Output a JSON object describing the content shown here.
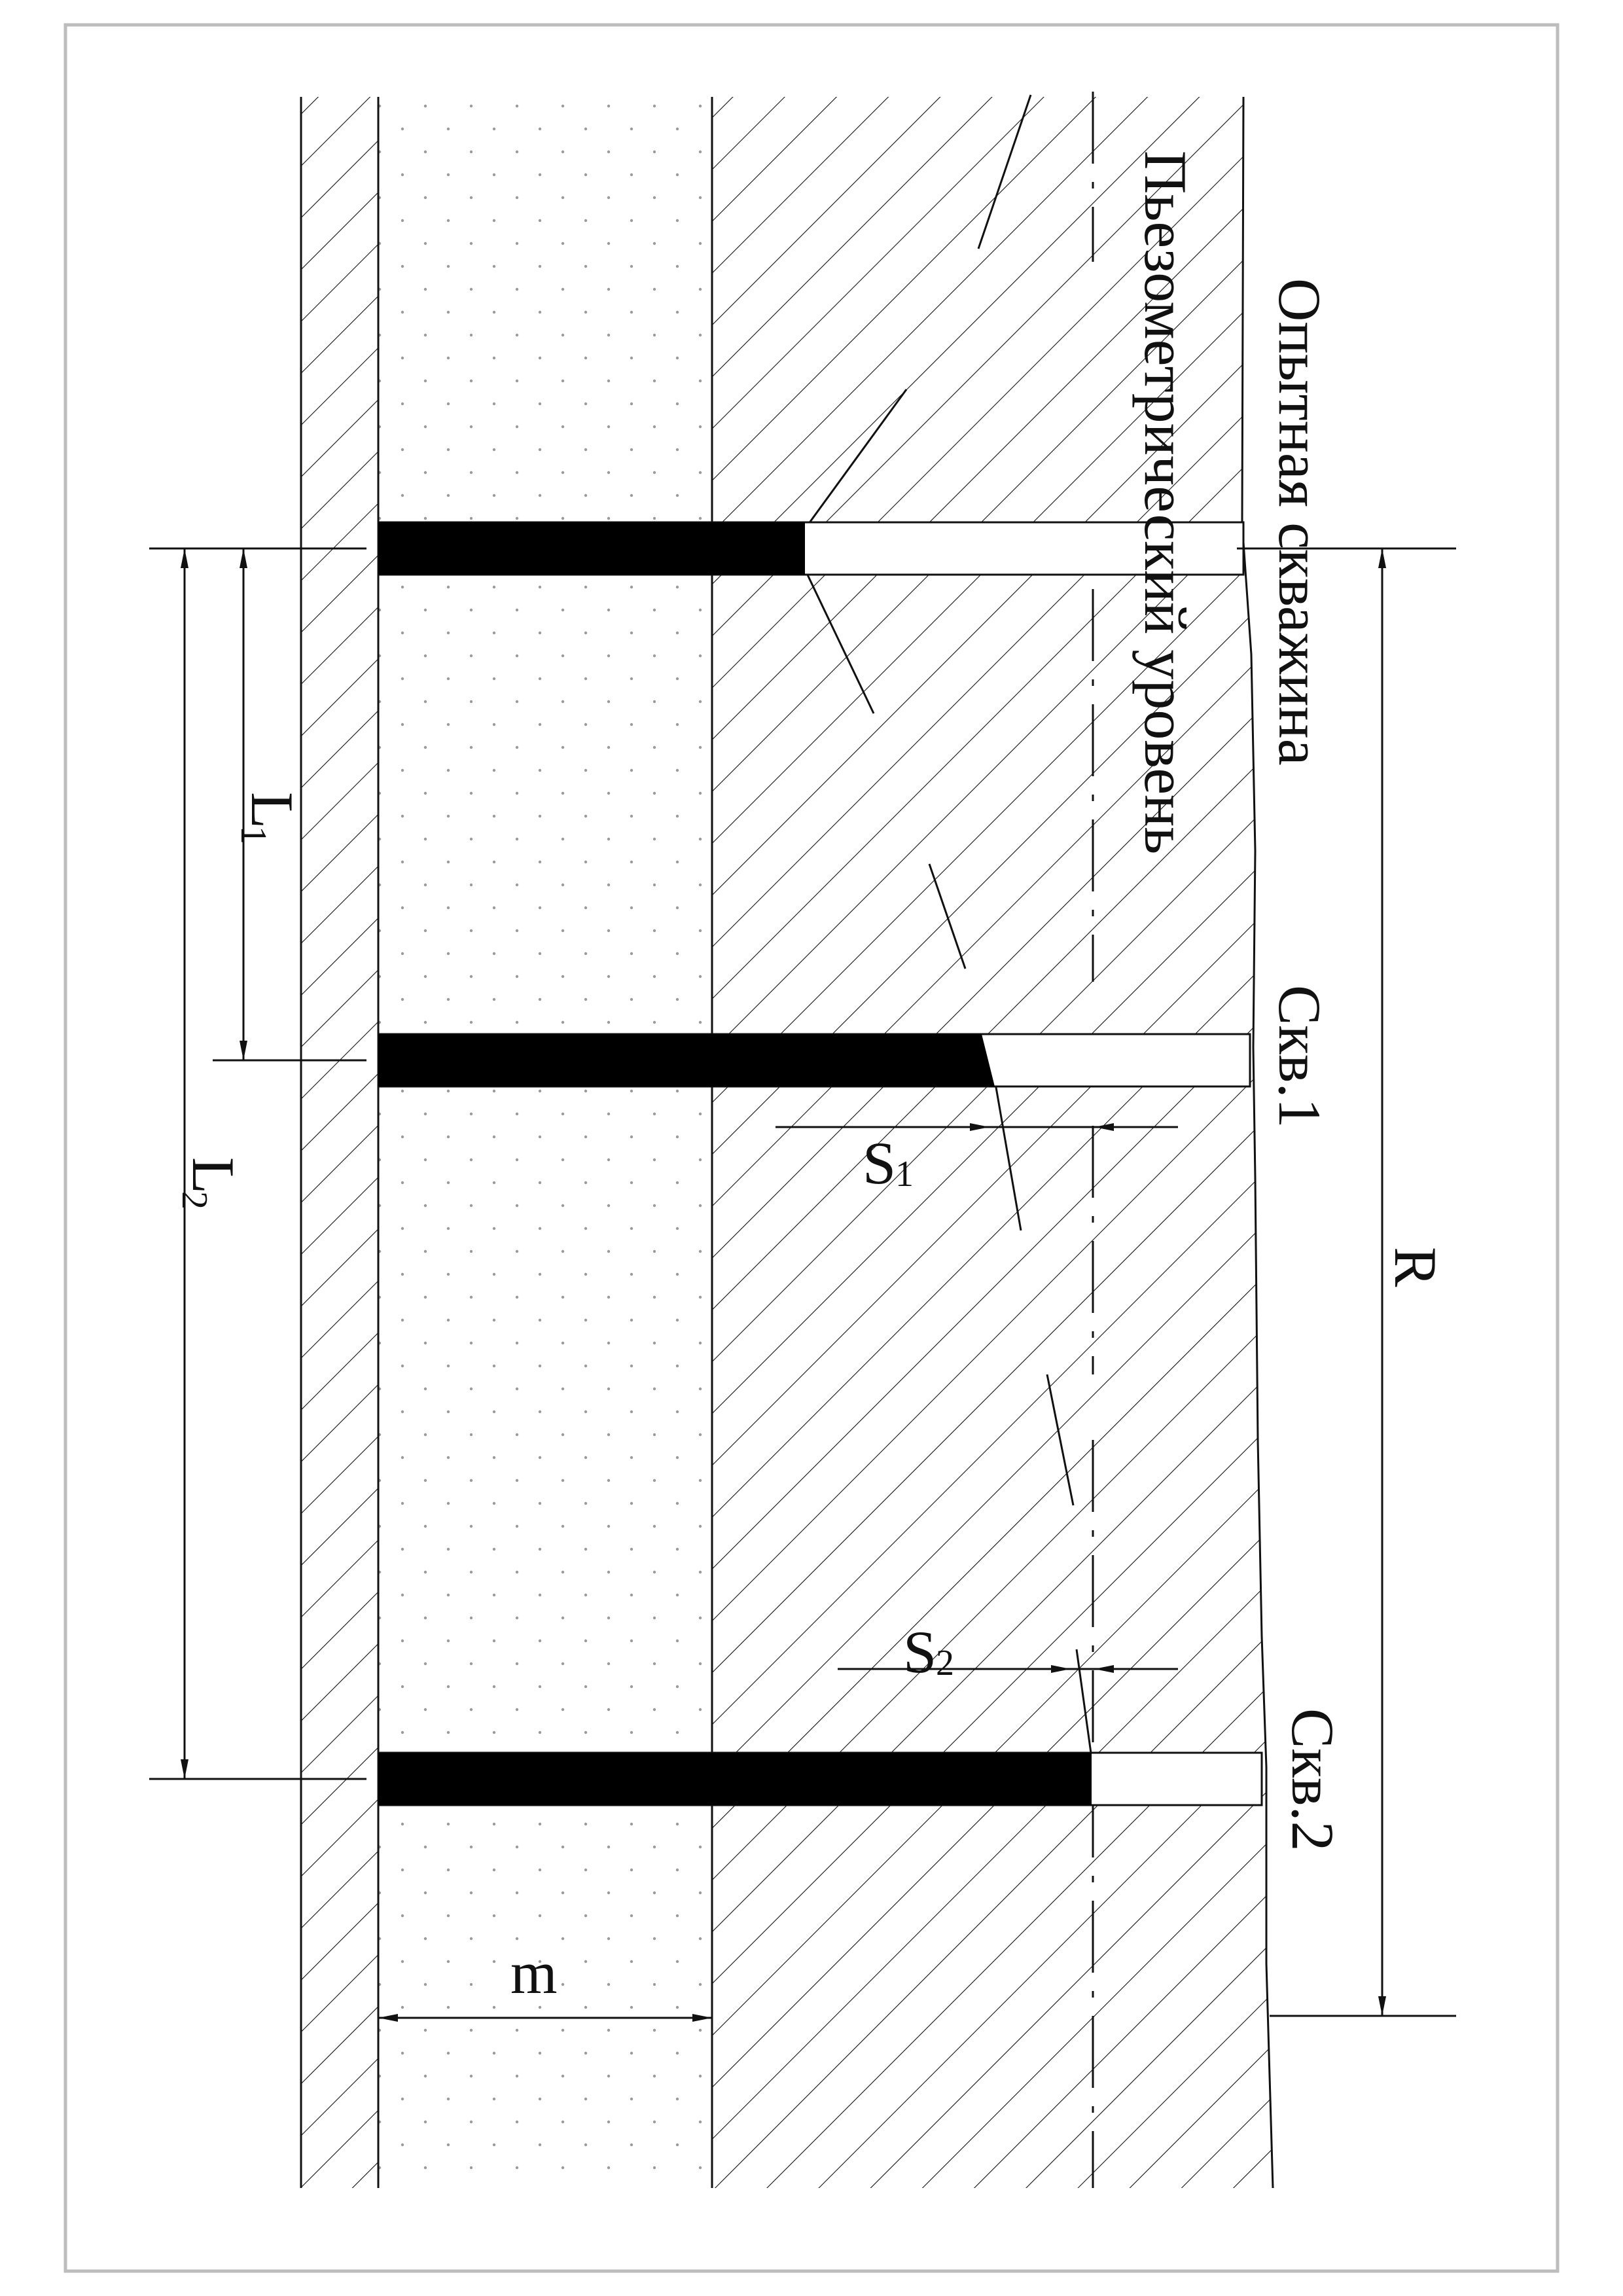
{
  "labels": {
    "experimental_well": "Опытная скважина",
    "piezometric_level": "Пьезометрический уровень",
    "well_1": "Скв.1",
    "well_2": "Скв.2",
    "radius": "R",
    "distance_1_main": "L",
    "distance_1_sub": "1",
    "distance_2_main": "L",
    "distance_2_sub": "2",
    "drawdown_1_main": "S",
    "drawdown_1_sub": "1",
    "drawdown_2_main": "S",
    "drawdown_2_sub": "2",
    "thickness": "m"
  },
  "colors": {
    "line": "#111111",
    "frame": "#bdbdbd",
    "dots": "#9a9a9a",
    "water_column": "#000000"
  },
  "layers": [
    {
      "name": "lower-confining-layer",
      "pattern": "hatch"
    },
    {
      "name": "aquifer-sand",
      "pattern": "dots"
    },
    {
      "name": "upper-confining-layer",
      "pattern": "hatch"
    }
  ]
}
